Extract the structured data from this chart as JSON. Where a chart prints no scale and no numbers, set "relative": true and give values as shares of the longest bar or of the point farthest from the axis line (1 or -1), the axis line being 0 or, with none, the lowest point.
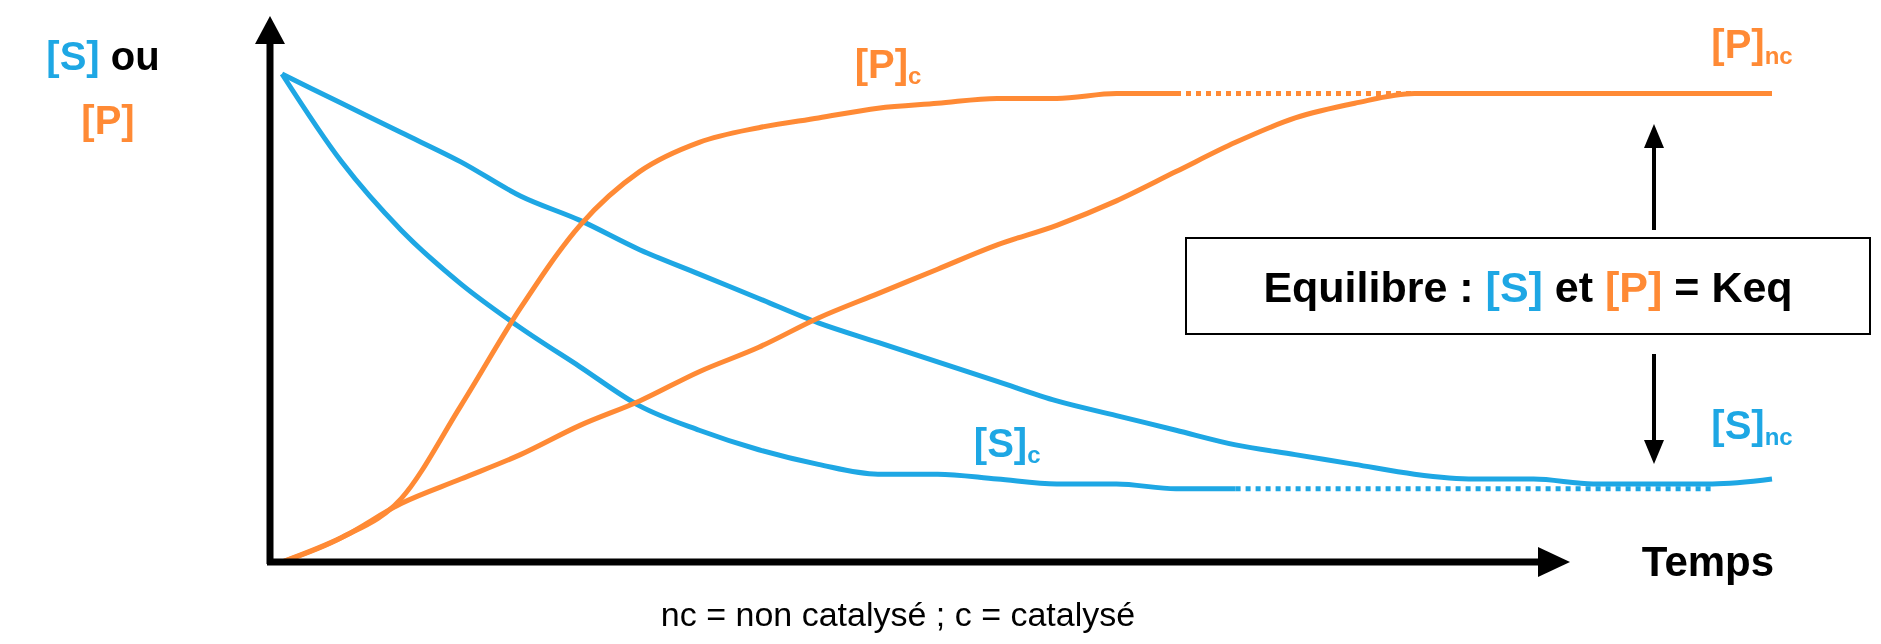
{
  "chart_data": {
    "type": "line",
    "relative": true,
    "marker": "none",
    "ylabel": "[S] ou [P]",
    "xlabel": "Temps",
    "categories": [
      null,
      null,
      null,
      null,
      null,
      null,
      null,
      null,
      null,
      null,
      null,
      null,
      null,
      null,
      null,
      null,
      null,
      null,
      null,
      null,
      null,
      null,
      null,
      null,
      null,
      null
    ],
    "series": [
      {
        "name": "[S]$_{nc}$",
        "color": "#1ea7e4",
        "line_style": "solid",
        "values": [
          1.0,
          0.94,
          0.88,
          0.82,
          0.75,
          0.7,
          0.64,
          0.59,
          0.54,
          0.49,
          0.45,
          0.41,
          0.37,
          0.33,
          0.3,
          0.27,
          0.24,
          0.22,
          0.2,
          0.18,
          0.17,
          0.17,
          0.16,
          0.16,
          0.16,
          0.17
        ]
      },
      {
        "name": "[S]$_{c}$",
        "color": "#1ea7e4",
        "line_style": "solid",
        "values": [
          1.0,
          0.82,
          0.68,
          0.57,
          0.48,
          0.4,
          0.32,
          0.27,
          0.23,
          0.2,
          0.18,
          0.18,
          0.17,
          0.16,
          0.16,
          0.15,
          0.15,
          null,
          null,
          null,
          null,
          null,
          null,
          null,
          null,
          null
        ]
      },
      {
        "color": "#1ea7e4",
        "line_style": "dotted",
        "values": [
          null,
          null,
          null,
          null,
          null,
          null,
          null,
          null,
          null,
          null,
          null,
          null,
          null,
          null,
          null,
          null,
          0.15,
          0.15,
          0.15,
          0.15,
          0.15,
          0.15,
          0.15,
          0.15,
          0.15,
          null
        ]
      },
      {
        "name": "[P]$_{nc}$",
        "color": "#ff8a35",
        "line_style": "solid",
        "values": [
          0,
          0.05,
          0.12,
          0.17,
          0.22,
          0.28,
          0.33,
          0.39,
          0.44,
          0.5,
          0.55,
          0.6,
          0.65,
          0.69,
          0.74,
          0.8,
          0.86,
          0.91,
          0.94,
          0.96,
          0.96,
          0.96,
          0.96,
          0.96,
          0.96,
          0.96
        ]
      },
      {
        "name": "[P]$_{c}$",
        "color": "#ff8a35",
        "line_style": "solid",
        "values": [
          0,
          0.05,
          0.13,
          0.32,
          0.52,
          0.69,
          0.8,
          0.86,
          0.89,
          0.91,
          0.93,
          0.94,
          0.95,
          0.95,
          0.96,
          0.96,
          null,
          null,
          null,
          null,
          null,
          null,
          null,
          null,
          null,
          null
        ]
      },
      {
        "color": "#ff8a35",
        "line_style": "dotted",
        "values": [
          null,
          null,
          null,
          null,
          null,
          null,
          null,
          null,
          null,
          null,
          null,
          null,
          null,
          null,
          null,
          0.96,
          0.96,
          0.96,
          0.96,
          0.96,
          0.96,
          0.96,
          0.96,
          0.96,
          null,
          null
        ]
      }
    ],
    "annotations": [
      "Equilibre : [S] et [P] = Keq",
      "nc = non catalysé ; c = catalysé"
    ]
  }
}
